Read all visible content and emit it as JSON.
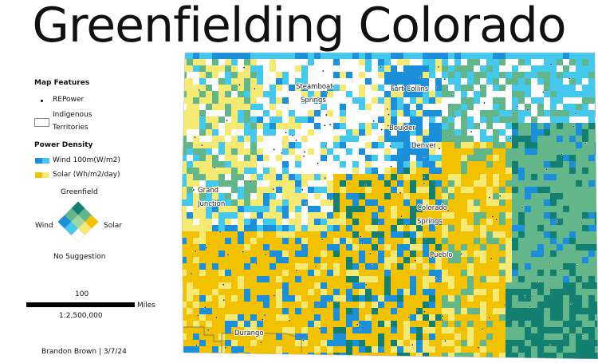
{
  "title": "Greenfielding Colorado",
  "legend": {
    "map_features_heading": "Map Features",
    "repower_label": "REPower",
    "indigenous_label_line1": "Indigenous",
    "indigenous_label_line2": "Territories",
    "power_density_heading": "Power Density",
    "wind_label": "Wind 100m(W/m2)",
    "solar_label": "Solar (Wh/m2/day)",
    "bivariate": {
      "top": "Greenfield",
      "left": "Wind",
      "right": "Solar",
      "bottom": "No Suggestion"
    }
  },
  "scale": {
    "value": "100",
    "unit": "Miles",
    "ratio": "1:2,500,000"
  },
  "credit": "Brandon Brown | 3/7/24",
  "cities": [
    {
      "id": "steamboat-line1",
      "label": "Steamboat"
    },
    {
      "id": "steamboat-line2",
      "label": "Springs"
    },
    {
      "id": "fort-collins",
      "label": "Fort Collins"
    },
    {
      "id": "boulder",
      "label": "Boulder"
    },
    {
      "id": "denver",
      "label": "Denver"
    },
    {
      "id": "grand-junction-line1",
      "label": "Grand"
    },
    {
      "id": "grand-junction-line2",
      "label": "Junction"
    },
    {
      "id": "colorado-springs-line1",
      "label": "Colorado"
    },
    {
      "id": "colorado-springs-line2",
      "label": "Springs"
    },
    {
      "id": "pueblo",
      "label": "Pueblo"
    },
    {
      "id": "durango",
      "label": "Durango"
    }
  ],
  "colors": {
    "wind_dark": "#1b8fd9",
    "wind_light": "#45c8ee",
    "solar_dark": "#f2c200",
    "solar_light": "#f7ea74",
    "greenfield_dark": "#127f71",
    "greenfield_light": "#63b58a",
    "no_suggestion": "#ffffff"
  }
}
